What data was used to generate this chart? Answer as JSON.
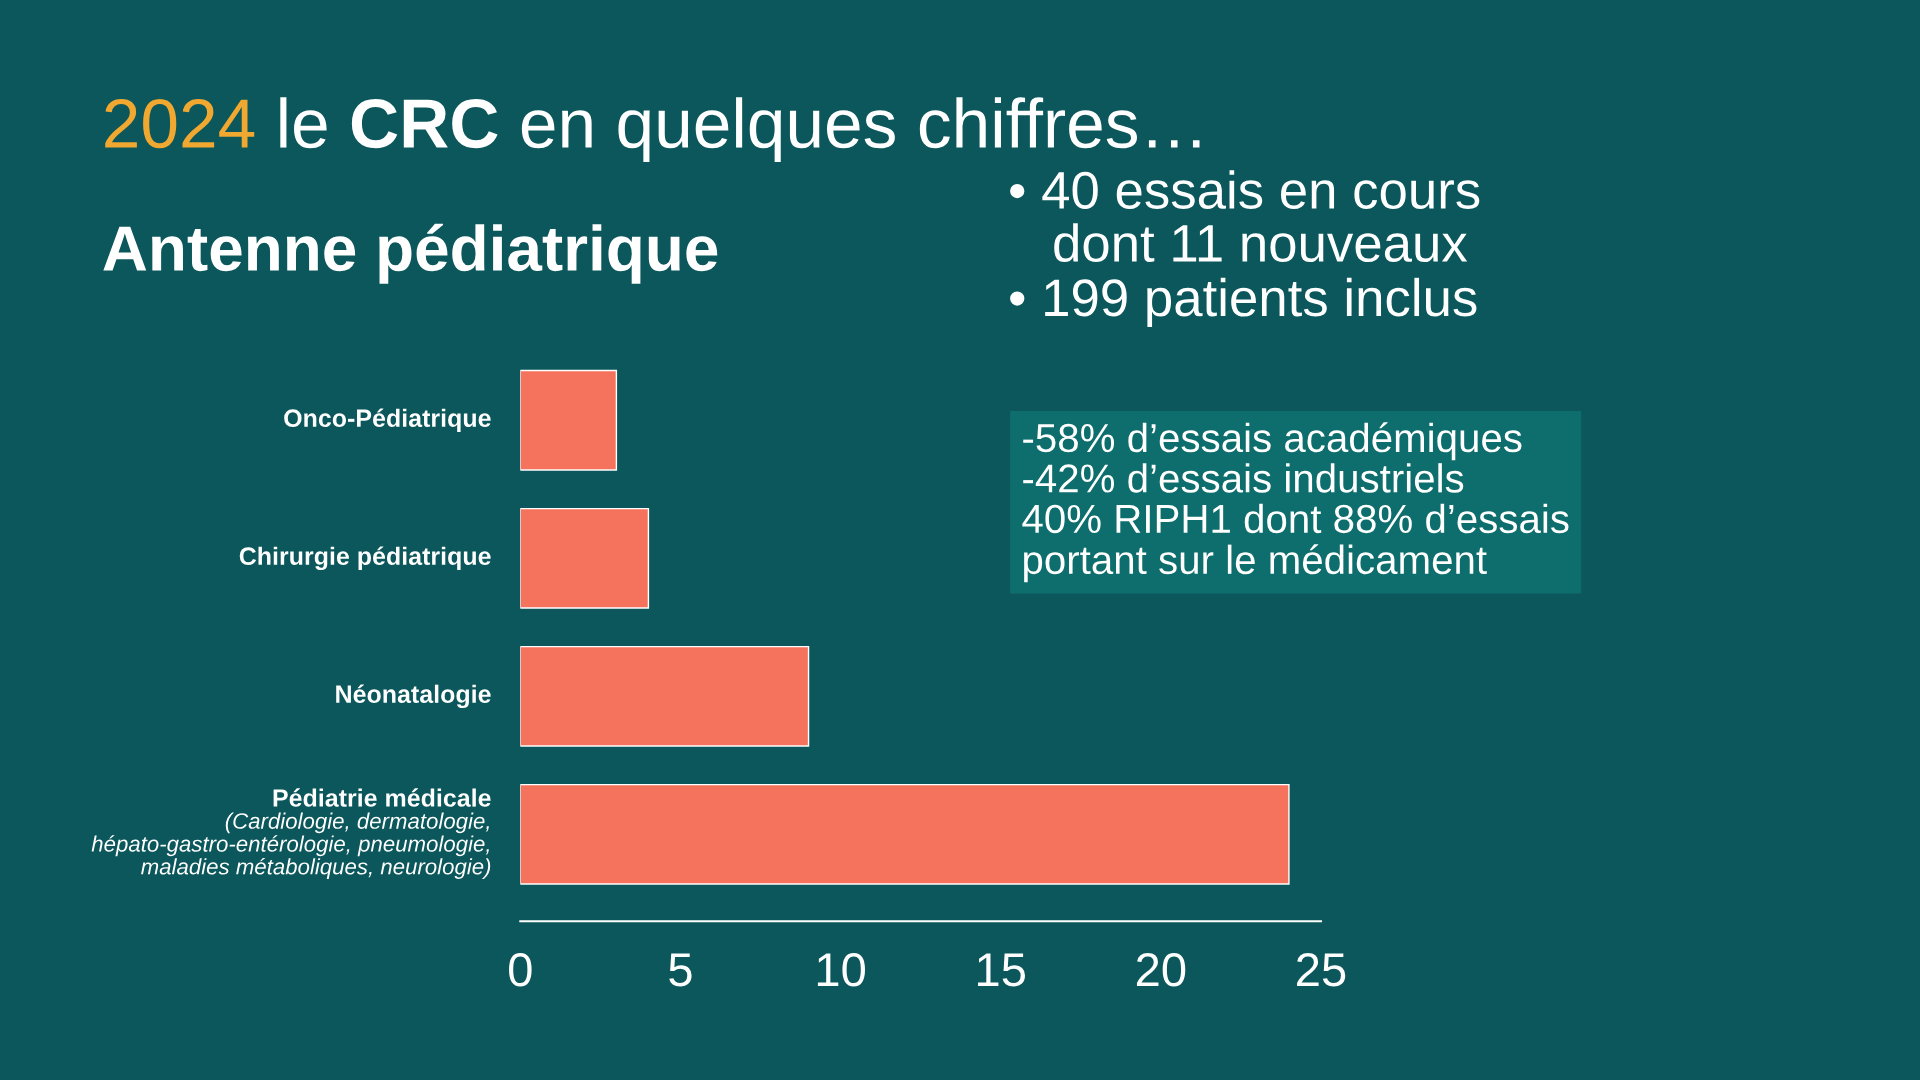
{
  "chart_data": {
    "type": "bar",
    "orientation": "horizontal",
    "title": "2024 le CRC en quelques chiffres…",
    "subtitle": "Antenne pédiatrique",
    "categories": [
      "Onco-Pédiatrique",
      "Chirurgie pédiatrique",
      "Néonatalogie",
      "Pédiatrie médicale\n(Cardiologie, dermatologie,\nhépato-gastro-entérologie, pneumologie,\nmaladies métaboliques, neurologie)"
    ],
    "values": [
      3,
      4,
      9,
      24
    ],
    "color": "#f5735d",
    "xlim": [
      0,
      25
    ],
    "xticks": [
      0,
      5,
      10,
      15,
      20,
      25
    ],
    "grid": false,
    "legend": false,
    "annotations": [
      "• 40 essais en cours\n   dont 11 nouveaux",
      "• 199 patients inclus",
      "-58% d’essais académiques\n-42% d’essais industriels\n40% RIPH1 dont 88% d’essais\nportant sur le médicament"
    ]
  }
}
